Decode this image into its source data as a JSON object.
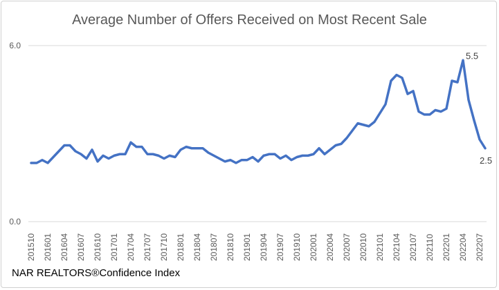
{
  "chart_data": {
    "type": "line",
    "title": "Average Number of Offers Received on Most Recent Sale",
    "source_note": "NAR REALTORS®Confidence Index",
    "ylim": [
      0,
      6
    ],
    "yticks": [
      "0.0",
      "6.0"
    ],
    "grid": true,
    "line_color": "#4472C4",
    "x": [
      "201510",
      "201511",
      "201512",
      "201601",
      "201602",
      "201603",
      "201604",
      "201605",
      "201606",
      "201607",
      "201608",
      "201609",
      "201610",
      "201611",
      "201612",
      "201701",
      "201702",
      "201703",
      "201704",
      "201705",
      "201706",
      "201707",
      "201708",
      "201709",
      "201710",
      "201711",
      "201712",
      "201801",
      "201802",
      "201803",
      "201804",
      "201805",
      "201806",
      "201807",
      "201808",
      "201809",
      "201810",
      "201811",
      "201812",
      "201901",
      "201902",
      "201903",
      "201904",
      "201905",
      "201906",
      "201907",
      "201908",
      "201909",
      "201910",
      "201911",
      "201912",
      "202001",
      "202002",
      "202003",
      "202004",
      "202005",
      "202006",
      "202007",
      "202008",
      "202009",
      "202010",
      "202011",
      "202012",
      "202101",
      "202102",
      "202103",
      "202104",
      "202105",
      "202106",
      "202107",
      "202108",
      "202109",
      "202110",
      "202111",
      "202112",
      "202201",
      "202202",
      "202203",
      "202204",
      "202205",
      "202206",
      "202207",
      "202208"
    ],
    "xtick_labels": [
      "201510",
      "201601",
      "201604",
      "201607",
      "201610",
      "201701",
      "201704",
      "201707",
      "201710",
      "201801",
      "201804",
      "201807",
      "201810",
      "201901",
      "201904",
      "201907",
      "201910",
      "202001",
      "202004",
      "202007",
      "202010",
      "202101",
      "202104",
      "202107",
      "202110",
      "202201",
      "202204",
      "202207"
    ],
    "values": [
      2.0,
      2.0,
      2.1,
      2.0,
      2.2,
      2.4,
      2.6,
      2.6,
      2.4,
      2.3,
      2.15,
      2.45,
      2.05,
      2.25,
      2.15,
      2.25,
      2.3,
      2.3,
      2.7,
      2.55,
      2.55,
      2.3,
      2.3,
      2.25,
      2.15,
      2.25,
      2.2,
      2.45,
      2.55,
      2.5,
      2.5,
      2.5,
      2.35,
      2.25,
      2.15,
      2.05,
      2.1,
      2.0,
      2.1,
      2.1,
      2.2,
      2.05,
      2.25,
      2.3,
      2.3,
      2.15,
      2.25,
      2.1,
      2.2,
      2.25,
      2.25,
      2.3,
      2.5,
      2.3,
      2.45,
      2.6,
      2.65,
      2.85,
      3.1,
      3.35,
      3.3,
      3.25,
      3.4,
      3.7,
      4.0,
      4.8,
      5.0,
      4.9,
      4.35,
      4.45,
      3.75,
      3.65,
      3.65,
      3.8,
      3.75,
      3.85,
      4.8,
      4.75,
      5.5,
      4.15,
      3.45,
      2.8,
      2.5
    ],
    "data_labels": [
      {
        "x": "202204",
        "text": "5.5"
      },
      {
        "x": "202208",
        "text": "2.5"
      }
    ]
  }
}
